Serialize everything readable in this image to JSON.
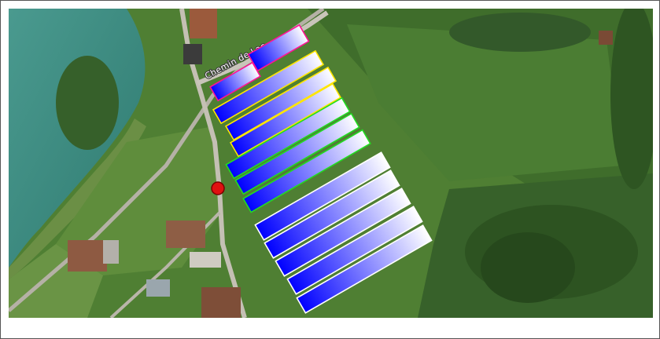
{
  "map": {
    "road_label": "Chemin de Lac",
    "colors": {
      "water": "#3f8f86",
      "field_light": "#5f8f3c",
      "field_dark": "#3d6b2a",
      "forest": "#2b4f1f",
      "road": "#b9b5aa",
      "roof": "#9b5a3c",
      "panel_fill_start": "#0000ff",
      "panel_fill_end": "#ffffff",
      "marker": "#e01010"
    }
  },
  "solar_panels": [
    {
      "id": "panel-1",
      "outline": "#ff1493",
      "group": "magenta"
    },
    {
      "id": "panel-2",
      "outline": "#ff1493",
      "group": "magenta"
    },
    {
      "id": "panel-3",
      "outline": "#ffe600",
      "group": "yellow"
    },
    {
      "id": "panel-4",
      "outline": "#ffe600",
      "group": "yellow"
    },
    {
      "id": "panel-5",
      "outline": "#ffe600",
      "group": "yellow"
    },
    {
      "id": "panel-6",
      "outline": "#22dd22",
      "group": "green"
    },
    {
      "id": "panel-7",
      "outline": "#22dd22",
      "group": "green"
    },
    {
      "id": "panel-8",
      "outline": "#22dd22",
      "group": "green"
    },
    {
      "id": "panel-9",
      "outline": "#ffffff",
      "group": "white"
    },
    {
      "id": "panel-10",
      "outline": "#ffffff",
      "group": "white"
    },
    {
      "id": "panel-11",
      "outline": "#ffffff",
      "group": "white"
    },
    {
      "id": "panel-12",
      "outline": "#ffffff",
      "group": "white"
    },
    {
      "id": "panel-13",
      "outline": "#ffffff",
      "group": "white"
    }
  ]
}
